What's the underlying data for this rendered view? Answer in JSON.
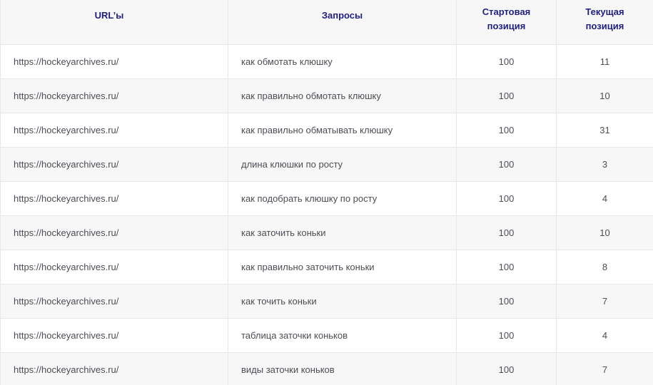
{
  "headers": {
    "url": "URL’ы",
    "query": "Запросы",
    "start": "Стартовая позиция",
    "current": "Текущая позиция"
  },
  "rows": [
    {
      "url": "https://hockeyarchives.ru/",
      "query": "как обмотать клюшку",
      "start": "100",
      "current": "11"
    },
    {
      "url": "https://hockeyarchives.ru/",
      "query": "как правильно обмотать клюшку",
      "start": "100",
      "current": "10"
    },
    {
      "url": "https://hockeyarchives.ru/",
      "query": "как правильно обматывать клюшку",
      "start": "100",
      "current": "31"
    },
    {
      "url": "https://hockeyarchives.ru/",
      "query": "длина клюшки по росту",
      "start": "100",
      "current": "3"
    },
    {
      "url": "https://hockeyarchives.ru/",
      "query": "как подобрать клюшку по росту",
      "start": "100",
      "current": "4"
    },
    {
      "url": "https://hockeyarchives.ru/",
      "query": "как заточить коньки",
      "start": "100",
      "current": "10"
    },
    {
      "url": "https://hockeyarchives.ru/",
      "query": "как правильно заточить коньки",
      "start": "100",
      "current": "8"
    },
    {
      "url": "https://hockeyarchives.ru/",
      "query": "как точить коньки",
      "start": "100",
      "current": "7"
    },
    {
      "url": "https://hockeyarchives.ru/",
      "query": "таблица заточки коньков",
      "start": "100",
      "current": "4"
    },
    {
      "url": "https://hockeyarchives.ru/",
      "query": "виды заточки коньков",
      "start": "100",
      "current": "7"
    }
  ],
  "colors": {
    "header_text": "#1f1f7a",
    "cell_text": "#4d4d57",
    "alt_row": "#f7f7f7",
    "border": "#e6e6ec"
  }
}
